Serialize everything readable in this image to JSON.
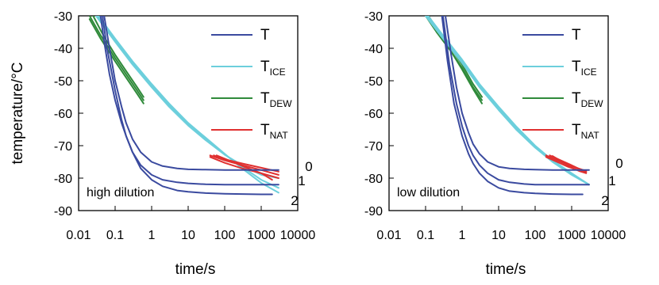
{
  "figure": {
    "ylabel": "temperature/°C",
    "xlabel": "time/s"
  },
  "legend": [
    {
      "base": "T",
      "sub": "",
      "color": "#3a4a9f"
    },
    {
      "base": "T",
      "sub": "ICE",
      "color": "#6ccfdc"
    },
    {
      "base": "T",
      "sub": "DEW",
      "color": "#2f8a3a"
    },
    {
      "base": "T",
      "sub": "NAT",
      "color": "#e03030"
    }
  ],
  "colors": {
    "T": "#3a4a9f",
    "T_ICE": "#6ccfdc",
    "T_DEW": "#2f8a3a",
    "T_NAT": "#e03030"
  },
  "chart_data": [
    {
      "type": "line",
      "panel_label": "high dilution",
      "xlabel": "time/s",
      "ylabel": "temperature/°C",
      "x_scale": "log",
      "xlim": [
        0.01,
        10000
      ],
      "x_ticks": [
        0.01,
        0.1,
        1,
        10,
        100,
        1000,
        10000
      ],
      "x_tick_labels": [
        "0.01",
        "0.1",
        "1",
        "10",
        "100",
        "1000",
        "10000"
      ],
      "ylim": [
        -90,
        -30
      ],
      "y_ticks": [
        -90,
        -80,
        -70,
        -60,
        -50,
        -40,
        -30
      ],
      "y_tick_labels": [
        "-90",
        "-80",
        "-70",
        "-60",
        "-50",
        "-40",
        "-30"
      ],
      "curve_labels": [
        "0",
        "1",
        "2"
      ],
      "series": [
        {
          "kind": "T",
          "label": "0",
          "x": [
            0.05,
            0.07,
            0.1,
            0.15,
            0.2,
            0.3,
            0.5,
            1,
            2,
            5,
            10,
            30,
            100,
            300,
            1000,
            3000
          ],
          "y": [
            -30,
            -40,
            -50,
            -58,
            -63,
            -68,
            -72,
            -75,
            -76.3,
            -77,
            -77.3,
            -77.4,
            -77.5,
            -77.5,
            -77.5,
            -77.5
          ]
        },
        {
          "kind": "T",
          "label": "1",
          "x": [
            0.045,
            0.06,
            0.1,
            0.15,
            0.2,
            0.3,
            0.5,
            1,
            2,
            5,
            10,
            30,
            100,
            300,
            1000,
            3000
          ],
          "y": [
            -30,
            -40,
            -53,
            -62,
            -67,
            -72,
            -76,
            -79,
            -80.5,
            -81.3,
            -81.6,
            -81.9,
            -82,
            -82,
            -82,
            -82
          ]
        },
        {
          "kind": "T",
          "label": "2",
          "x": [
            0.04,
            0.05,
            0.07,
            0.1,
            0.15,
            0.2,
            0.3,
            0.5,
            1,
            2,
            5,
            10,
            30,
            100,
            300,
            1000,
            2000
          ],
          "y": [
            -30,
            -38,
            -48,
            -56,
            -63,
            -67,
            -72,
            -77,
            -80.5,
            -82.5,
            -83.8,
            -84.2,
            -84.6,
            -84.8,
            -84.9,
            -85,
            -85
          ]
        },
        {
          "kind": "T_ICE",
          "x": [
            0.03,
            0.1,
            0.3,
            1,
            3,
            10,
            30,
            100,
            300,
            1000,
            3000
          ],
          "y": [
            -29,
            -37,
            -44,
            -51,
            -57,
            -63,
            -67.5,
            -72.5,
            -77,
            -81.5,
            -84.5
          ]
        },
        {
          "kind": "T_ICE",
          "x": [
            0.03,
            0.1,
            0.3,
            1,
            3,
            10,
            30,
            100,
            300,
            1000,
            3000
          ],
          "y": [
            -29.5,
            -37.5,
            -44.5,
            -51.5,
            -57.5,
            -63.5,
            -68,
            -72.7,
            -76.5,
            -80.5,
            -83
          ]
        },
        {
          "kind": "T_ICE",
          "x": [
            0.03,
            0.1,
            0.3,
            1,
            3,
            10,
            30,
            100,
            300,
            1000,
            3000
          ],
          "y": [
            -30,
            -38,
            -45,
            -52,
            -58,
            -63.8,
            -68.3,
            -72.8,
            -76,
            -79,
            -80
          ]
        },
        {
          "kind": "T_DEW",
          "x": [
            0.02,
            0.04,
            0.1,
            0.2,
            0.4,
            0.6
          ],
          "y": [
            -30,
            -36,
            -43,
            -48,
            -53,
            -56
          ]
        },
        {
          "kind": "T_DEW",
          "x": [
            0.02,
            0.04,
            0.1,
            0.2,
            0.4,
            0.6
          ],
          "y": [
            -31,
            -37,
            -44,
            -49,
            -54,
            -57
          ]
        },
        {
          "kind": "T_DEW",
          "x": [
            0.025,
            0.05,
            0.1,
            0.2,
            0.4,
            0.6
          ],
          "y": [
            -30,
            -36.5,
            -42,
            -47,
            -52,
            -55
          ]
        },
        {
          "kind": "T_NAT",
          "x": [
            40,
            100,
            300,
            1000,
            3000
          ],
          "y": [
            -73,
            -74.5,
            -76,
            -77.5,
            -79
          ]
        },
        {
          "kind": "T_NAT",
          "x": [
            40,
            100,
            300,
            1000,
            3000
          ],
          "y": [
            -73.5,
            -75.3,
            -77,
            -78.5,
            -80
          ]
        },
        {
          "kind": "T_NAT",
          "x": [
            50,
            100,
            300,
            1000,
            3000
          ],
          "y": [
            -73,
            -74.2,
            -75.5,
            -76.8,
            -78
          ]
        },
        {
          "kind": "T_NAT",
          "x": [
            60,
            150,
            400,
            1000,
            2000
          ],
          "y": [
            -73,
            -74.8,
            -76.8,
            -78.5,
            -80.5
          ]
        }
      ]
    },
    {
      "type": "line",
      "panel_label": "low dilution",
      "xlabel": "time/s",
      "ylabel": "",
      "x_scale": "log",
      "xlim": [
        0.01,
        10000
      ],
      "x_ticks": [
        0.01,
        0.1,
        1,
        10,
        100,
        1000,
        10000
      ],
      "x_tick_labels": [
        "0.01",
        "0.1",
        "1",
        "10",
        "100",
        "1000",
        "10000"
      ],
      "ylim": [
        -90,
        -30
      ],
      "y_ticks": [
        -90,
        -80,
        -70,
        -60,
        -50,
        -40,
        -30
      ],
      "y_tick_labels": [
        "-90",
        "-80",
        "-70",
        "-60",
        "-50",
        "-40",
        "-30"
      ],
      "curve_labels": [
        "0",
        "1",
        "2"
      ],
      "series": [
        {
          "kind": "T",
          "label": "0",
          "x": [
            0.35,
            0.5,
            0.7,
            1,
            1.5,
            2,
            3,
            5,
            10,
            20,
            50,
            100,
            300,
            1000,
            3000
          ],
          "y": [
            -30,
            -42,
            -52,
            -60,
            -66,
            -69.5,
            -72.5,
            -75,
            -76.5,
            -77,
            -77.3,
            -77.4,
            -77.5,
            -77.5,
            -77.5
          ]
        },
        {
          "kind": "T",
          "label": "1",
          "x": [
            0.3,
            0.45,
            0.7,
            1,
            1.5,
            2,
            3,
            5,
            10,
            20,
            50,
            100,
            300,
            1000,
            3000
          ],
          "y": [
            -30,
            -45,
            -57,
            -64,
            -70,
            -73,
            -76,
            -78.5,
            -80.5,
            -81.3,
            -81.8,
            -82,
            -82,
            -82,
            -82
          ]
        },
        {
          "kind": "T",
          "label": "2",
          "x": [
            0.28,
            0.4,
            0.6,
            1,
            1.5,
            2,
            3,
            5,
            10,
            20,
            50,
            100,
            300,
            1000,
            2000
          ],
          "y": [
            -30,
            -44,
            -57,
            -67,
            -72.5,
            -75.5,
            -78.5,
            -81,
            -83,
            -84,
            -84.5,
            -84.7,
            -84.9,
            -85,
            -85
          ]
        },
        {
          "kind": "T_ICE",
          "x": [
            0.1,
            0.3,
            1,
            3,
            10,
            30,
            100,
            300,
            1000,
            3000
          ],
          "y": [
            -29,
            -36,
            -43.5,
            -51,
            -58,
            -64,
            -70,
            -74.5,
            -78.5,
            -82
          ]
        },
        {
          "kind": "T_ICE",
          "x": [
            0.1,
            0.3,
            1,
            3,
            10,
            30,
            100,
            300,
            1000,
            3000
          ],
          "y": [
            -29.5,
            -36.5,
            -44,
            -51.5,
            -58.5,
            -64.5,
            -70.3,
            -74.7,
            -78.7,
            -82
          ]
        },
        {
          "kind": "T_ICE",
          "x": [
            0.1,
            0.3,
            1,
            3,
            10,
            30,
            100,
            300,
            1000,
            3000
          ],
          "y": [
            -30,
            -37,
            -44.5,
            -52,
            -59,
            -65,
            -70.6,
            -75,
            -79,
            -82
          ]
        },
        {
          "kind": "T_DEW",
          "x": [
            0.1,
            0.2,
            0.5,
            1,
            2,
            3.5
          ],
          "y": [
            -29,
            -34,
            -40,
            -45,
            -51,
            -55
          ]
        },
        {
          "kind": "T_DEW",
          "x": [
            0.1,
            0.2,
            0.5,
            1,
            2,
            3.5
          ],
          "y": [
            -30,
            -35,
            -41,
            -46,
            -52,
            -56
          ]
        },
        {
          "kind": "T_DEW",
          "x": [
            0.12,
            0.25,
            0.5,
            1,
            2,
            3.5
          ],
          "y": [
            -30,
            -35.5,
            -41,
            -46.5,
            -52.5,
            -57
          ]
        },
        {
          "kind": "T_NAT",
          "x": [
            200,
            400,
            800,
            1500,
            2500
          ],
          "y": [
            -73,
            -74.5,
            -76,
            -77,
            -78
          ]
        },
        {
          "kind": "T_NAT",
          "x": [
            200,
            400,
            800,
            1500,
            2500
          ],
          "y": [
            -73.5,
            -75,
            -76.5,
            -77.5,
            -78.2
          ]
        },
        {
          "kind": "T_NAT",
          "x": [
            250,
            500,
            900,
            1500,
            2500
          ],
          "y": [
            -73,
            -74.5,
            -75.8,
            -77,
            -77.8
          ]
        },
        {
          "kind": "T_NAT",
          "x": [
            300,
            600,
            1000,
            1600,
            2500
          ],
          "y": [
            -73.2,
            -75.2,
            -76.8,
            -77.8,
            -78.5
          ]
        }
      ]
    }
  ]
}
